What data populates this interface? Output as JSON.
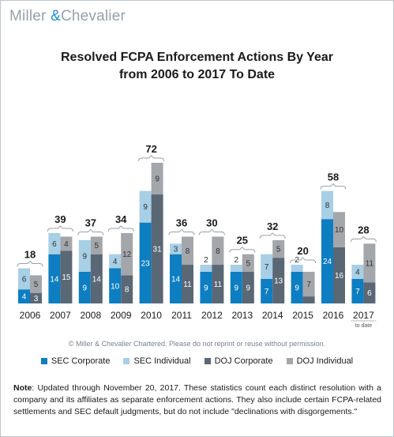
{
  "brand": {
    "name_left": "Miller ",
    "ampersand": "&",
    "name_right": "Chevalier"
  },
  "title_line1": "Resolved FCPA Enforcement Actions By Year",
  "title_line2": "from 2006 to 2017 To Date",
  "copyright": "© Miller & Chevalier Chartered. Please do not reprint or reuse without permission.",
  "note": {
    "label": "Note",
    "text": ": Updated through November 20, 2017. These statistics count each distinct resolution with a company and its affiliates as separate enforcement actions. They also include certain FCPA-related settlements and SEC default judgments, but do not include \"declinations with disgorgements.\""
  },
  "colors": {
    "sec_corporate": "#0d7ec1",
    "sec_individual": "#a7cfe6",
    "doj_corporate": "#5a6775",
    "doj_individual": "#a3a6ab",
    "brand_gray": "#98a1ab",
    "brand_blue": "#1f8fd0"
  },
  "chart_data": {
    "type": "bar",
    "subtype": "grouped-stacked",
    "title": "Resolved FCPA Enforcement Actions By Year from 2006 to 2017 To Date",
    "categories": [
      "2006",
      "2007",
      "2008",
      "2009",
      "2010",
      "2011",
      "2012",
      "2013",
      "2014",
      "2015",
      "2016",
      "2017"
    ],
    "category_sublabels": {
      "2017": "to date"
    },
    "totals": [
      18,
      39,
      37,
      34,
      72,
      36,
      30,
      25,
      32,
      20,
      58,
      28
    ],
    "series": [
      {
        "name": "SEC Corporate",
        "group": "SEC",
        "values": [
          4,
          14,
          9,
          10,
          23,
          14,
          9,
          9,
          7,
          9,
          24,
          7
        ]
      },
      {
        "name": "SEC Individual",
        "group": "SEC",
        "values": [
          6,
          6,
          9,
          4,
          9,
          3,
          2,
          2,
          7,
          2,
          8,
          4
        ]
      },
      {
        "name": "DOJ Corporate",
        "group": "DOJ",
        "values": [
          3,
          15,
          14,
          8,
          31,
          11,
          11,
          9,
          13,
          2,
          16,
          6
        ]
      },
      {
        "name": "DOJ Individual",
        "group": "DOJ",
        "values": [
          5,
          4,
          5,
          12,
          9,
          8,
          8,
          5,
          5,
          7,
          10,
          11
        ]
      }
    ],
    "legend_position": "bottom",
    "grid": false,
    "ylim": [
      0,
      40
    ]
  }
}
